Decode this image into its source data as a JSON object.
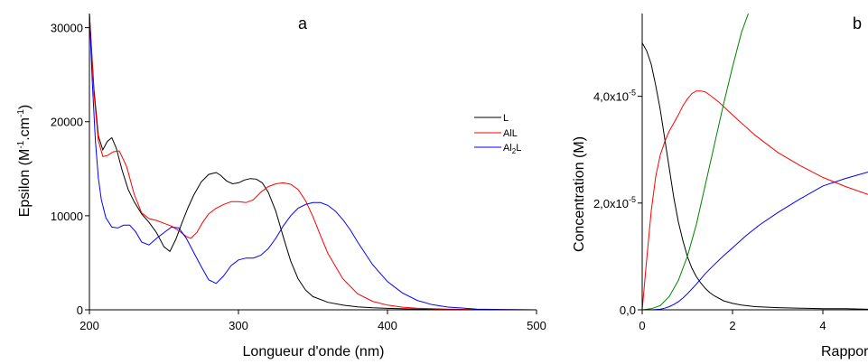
{
  "chart_data": [
    {
      "panel_label": "a",
      "type": "line",
      "xlabel": "Longueur d'onde (nm)",
      "ylabel": "Epsilon (M-1.cm-1)",
      "ylabel_parts": {
        "main": "Epsilon (M",
        "sup1": "-1",
        "mid": ".cm",
        "sup2": "-1",
        "end": ")"
      },
      "xlim": [
        200,
        500
      ],
      "ylim": [
        0,
        31500
      ],
      "xticks": [
        200,
        300,
        400,
        500
      ],
      "yticks": [
        0,
        10000,
        20000,
        30000
      ],
      "grid": false,
      "legend_position": "right",
      "series": [
        {
          "name": "L",
          "legend_parts": {
            "main": "L"
          },
          "color": "#000000",
          "x": [
            200,
            203,
            206,
            209,
            212,
            215,
            218,
            222,
            226,
            230,
            235,
            240,
            245,
            250,
            254,
            258,
            262,
            266,
            270,
            275,
            280,
            285,
            288,
            292,
            296,
            300,
            304,
            308,
            312,
            316,
            320,
            325,
            330,
            335,
            340,
            345,
            350,
            360,
            370,
            380,
            390,
            400,
            420,
            450,
            500
          ],
          "y": [
            31500,
            23500,
            18500,
            17000,
            17900,
            18300,
            17200,
            14800,
            12800,
            11500,
            10200,
            9300,
            8200,
            6700,
            6200,
            7500,
            9200,
            10800,
            12200,
            13600,
            14400,
            14600,
            14300,
            13700,
            13400,
            13500,
            13800,
            13950,
            13900,
            13500,
            12500,
            10500,
            7800,
            5200,
            3300,
            2100,
            1400,
            800,
            500,
            320,
            210,
            150,
            80,
            30,
            0
          ]
        },
        {
          "name": "AlL",
          "legend_parts": {
            "main": "AlL"
          },
          "color": "#ff0000",
          "x": [
            200,
            203,
            206,
            209,
            212,
            216,
            220,
            225,
            230,
            235,
            240,
            245,
            250,
            255,
            260,
            265,
            268,
            272,
            276,
            280,
            285,
            290,
            295,
            300,
            305,
            310,
            315,
            320,
            325,
            330,
            335,
            340,
            345,
            350,
            355,
            360,
            370,
            380,
            390,
            400,
            410,
            420,
            440,
            460,
            500
          ],
          "y": [
            31500,
            23000,
            18000,
            16300,
            16400,
            16800,
            16900,
            15200,
            12300,
            10300,
            9700,
            9500,
            9200,
            8900,
            8400,
            7800,
            7600,
            8200,
            9300,
            10200,
            10800,
            11200,
            11500,
            11500,
            11400,
            11700,
            12500,
            13100,
            13400,
            13500,
            13350,
            12800,
            11600,
            9900,
            7900,
            6000,
            3300,
            1700,
            900,
            500,
            280,
            160,
            70,
            20,
            0
          ]
        },
        {
          "name": "Al2L",
          "legend_parts": {
            "main": "Al",
            "sub": "2",
            "end": "L"
          },
          "color": "#0000ff",
          "x": [
            200,
            202,
            204,
            206,
            208,
            211,
            215,
            219,
            223,
            227,
            231,
            235,
            240,
            245,
            250,
            255,
            260,
            265,
            270,
            275,
            280,
            285,
            290,
            295,
            300,
            305,
            310,
            315,
            320,
            325,
            330,
            335,
            340,
            345,
            350,
            355,
            360,
            365,
            370,
            375,
            380,
            390,
            400,
            410,
            420,
            430,
            440,
            460,
            480,
            500
          ],
          "y": [
            31500,
            24000,
            18000,
            14000,
            11700,
            9800,
            8800,
            8700,
            9000,
            9000,
            8300,
            7200,
            6900,
            7600,
            8200,
            8800,
            8700,
            7600,
            6100,
            4600,
            3200,
            2800,
            3600,
            4700,
            5300,
            5500,
            5500,
            5800,
            6500,
            7600,
            8900,
            10000,
            10800,
            11200,
            11400,
            11400,
            11100,
            10500,
            9600,
            8500,
            7200,
            4800,
            3000,
            1800,
            1000,
            550,
            300,
            80,
            20,
            0
          ]
        }
      ]
    },
    {
      "panel_label": "b",
      "type": "line",
      "xlabel": "Rapport",
      "ylabel": "Concentration (M)",
      "xlim": [
        0,
        5
      ],
      "ylim": [
        0,
        5.55e-05
      ],
      "xticks": [
        0,
        2,
        4
      ],
      "yticks": [
        0,
        2e-05,
        4e-05
      ],
      "ytick_labels": [
        {
          "main": "0,0",
          "exp": ""
        },
        {
          "main": "2,0x10",
          "exp": "-5"
        },
        {
          "main": "4,0x10",
          "exp": "-5"
        }
      ],
      "grid": false,
      "series": [
        {
          "color": "#000000",
          "x": [
            0,
            0.1,
            0.2,
            0.3,
            0.4,
            0.5,
            0.6,
            0.7,
            0.8,
            0.9,
            1.0,
            1.1,
            1.2,
            1.3,
            1.4,
            1.5,
            1.6,
            1.8,
            2.0,
            2.2,
            2.5,
            3.0,
            3.5,
            4.0,
            4.5,
            5.0
          ],
          "y": [
            5e-05,
            4.85e-05,
            4.6e-05,
            4.2e-05,
            3.75e-05,
            3.2e-05,
            2.65e-05,
            2.1e-05,
            1.65e-05,
            1.3e-05,
            1e-05,
            7.8e-06,
            6.2e-06,
            5e-06,
            4e-06,
            3.2e-06,
            2.6e-06,
            1.7e-06,
            1.2e-06,
            9e-07,
            6e-07,
            4e-07,
            3e-07,
            2e-07,
            2e-07,
            1e-07
          ]
        },
        {
          "color": "#ff0000",
          "x": [
            0,
            0.1,
            0.2,
            0.3,
            0.4,
            0.5,
            0.6,
            0.7,
            0.8,
            0.9,
            1.0,
            1.1,
            1.2,
            1.3,
            1.4,
            1.5,
            1.7,
            2.0,
            2.5,
            3.0,
            3.5,
            4.0,
            4.5,
            5.0
          ],
          "y": [
            0,
            9.5e-06,
            1.85e-05,
            2.5e-05,
            2.9e-05,
            3.15e-05,
            3.35e-05,
            3.5e-05,
            3.65e-05,
            3.82e-05,
            3.95e-05,
            4.05e-05,
            4.1e-05,
            4.1e-05,
            4.08e-05,
            4.02e-05,
            3.89e-05,
            3.65e-05,
            3.27e-05,
            2.95e-05,
            2.7e-05,
            2.48e-05,
            2.31e-05,
            2.16e-05
          ]
        },
        {
          "color": "#008000",
          "x": [
            0,
            0.2,
            0.4,
            0.6,
            0.8,
            1.0,
            1.2,
            1.4,
            1.6,
            1.8,
            2.0,
            2.2,
            2.35
          ],
          "y": [
            0,
            2e-07,
            8e-07,
            2.5e-06,
            5.5e-06,
            1e-05,
            1.6e-05,
            2.35e-05,
            3.1e-05,
            3.85e-05,
            4.55e-05,
            5.2e-05,
            5.55e-05
          ]
        },
        {
          "color": "#0000ff",
          "x": [
            0,
            0.2,
            0.4,
            0.5,
            0.6,
            0.7,
            0.8,
            0.9,
            1.0,
            1.2,
            1.4,
            1.6,
            1.8,
            2.0,
            2.3,
            2.6,
            3.0,
            3.5,
            4.0,
            4.5,
            5.0
          ],
          "y": [
            0,
            0,
            1e-07,
            3e-07,
            6e-07,
            1e-06,
            1.5e-06,
            2.2e-06,
            3e-06,
            4.8e-06,
            6.8e-06,
            8.5e-06,
            1.01e-05,
            1.16e-05,
            1.39e-05,
            1.59e-05,
            1.82e-05,
            2.08e-05,
            2.32e-05,
            2.46e-05,
            2.58e-05
          ]
        }
      ]
    }
  ]
}
